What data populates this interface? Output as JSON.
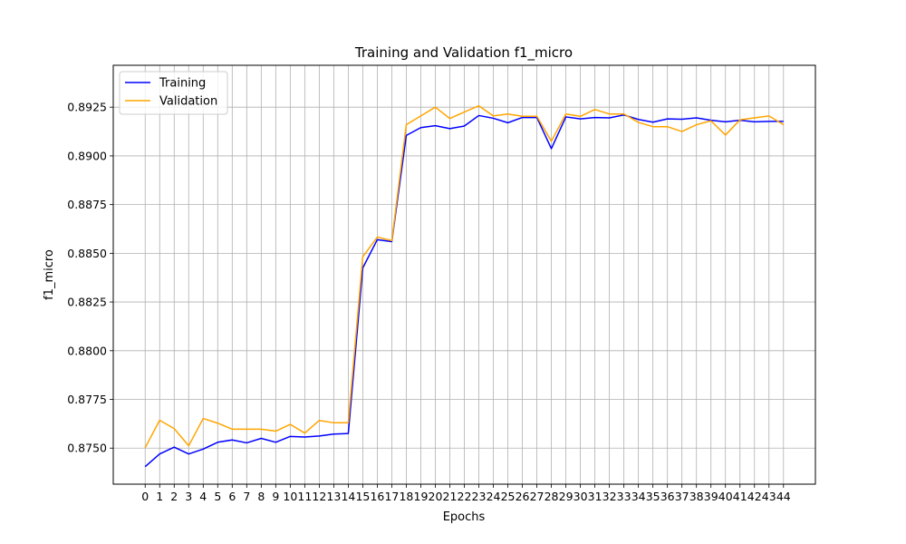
{
  "chart_data": {
    "type": "line",
    "title": "Training and Validation f1_micro",
    "xlabel": "Epochs",
    "ylabel": "f1_micro",
    "x": [
      0,
      1,
      2,
      3,
      4,
      5,
      6,
      7,
      8,
      9,
      10,
      11,
      12,
      13,
      14,
      15,
      16,
      17,
      18,
      19,
      20,
      21,
      22,
      23,
      24,
      25,
      26,
      27,
      28,
      29,
      30,
      31,
      32,
      33,
      34,
      35,
      36,
      37,
      38,
      39,
      40,
      41,
      42,
      43,
      44
    ],
    "xlim": [
      -2.2,
      46.2
    ],
    "ylim": [
      0.87315,
      0.89465
    ],
    "yticks": [
      0.875,
      0.8775,
      0.88,
      0.8825,
      0.885,
      0.8875,
      0.89,
      0.8925
    ],
    "ytick_labels": [
      "0.8750",
      "0.8775",
      "0.8800",
      "0.8825",
      "0.8850",
      "0.8875",
      "0.8900",
      "0.8925"
    ],
    "grid": true,
    "legend_position": "top-left",
    "series": [
      {
        "name": "Training",
        "color": "#0000ff",
        "values": [
          0.87405,
          0.8747,
          0.87505,
          0.8747,
          0.87495,
          0.8753,
          0.87542,
          0.87527,
          0.8755,
          0.8753,
          0.8756,
          0.87557,
          0.87562,
          0.87572,
          0.87575,
          0.88425,
          0.8857,
          0.8856,
          0.89105,
          0.89145,
          0.89155,
          0.8914,
          0.89153,
          0.89207,
          0.89193,
          0.8917,
          0.89197,
          0.89197,
          0.89037,
          0.892,
          0.8919,
          0.89197,
          0.89195,
          0.8921,
          0.89187,
          0.89173,
          0.8919,
          0.89188,
          0.89195,
          0.89183,
          0.89175,
          0.89183,
          0.89175,
          0.89177,
          0.89177
        ]
      },
      {
        "name": "Validation",
        "color": "#ffa500",
        "values": [
          0.87502,
          0.87643,
          0.876,
          0.87512,
          0.87652,
          0.87628,
          0.87597,
          0.87597,
          0.87597,
          0.87587,
          0.87622,
          0.87577,
          0.87642,
          0.8763,
          0.8763,
          0.88482,
          0.88583,
          0.88565,
          0.8916,
          0.89205,
          0.8925,
          0.89192,
          0.89225,
          0.89257,
          0.89205,
          0.89215,
          0.89203,
          0.89203,
          0.89075,
          0.89215,
          0.89203,
          0.89238,
          0.89215,
          0.89215,
          0.89172,
          0.8915,
          0.8915,
          0.89125,
          0.8916,
          0.8918,
          0.89107,
          0.89185,
          0.89195,
          0.89205,
          0.8916
        ]
      }
    ]
  }
}
